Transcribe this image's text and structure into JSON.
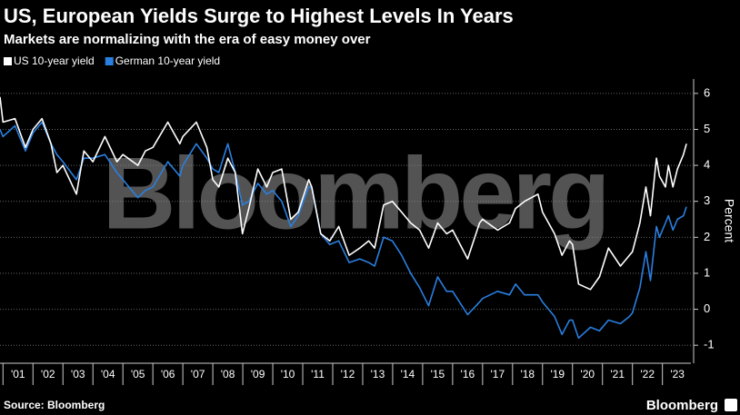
{
  "chart_data": {
    "type": "line",
    "title": "US, European Yields Surge to Highest Levels In Years",
    "subtitle": "Markets are normalizing with the era of easy money over",
    "y_label": "Percent",
    "source": "Source: Bloomberg",
    "logo": "Bloomberg",
    "watermark": "Bloomberg",
    "legend": "top-left",
    "grid": true,
    "x": [
      2000.9,
      2001.0,
      2001.4,
      2001.75,
      2002.0,
      2002.3,
      2002.6,
      2002.8,
      2003.0,
      2003.45,
      2003.7,
      2004.0,
      2004.4,
      2004.8,
      2005.0,
      2005.5,
      2005.75,
      2006.0,
      2006.5,
      2006.9,
      2007.0,
      2007.45,
      2007.8,
      2008.0,
      2008.2,
      2008.5,
      2008.75,
      2008.99,
      2009.2,
      2009.5,
      2009.8,
      2010.0,
      2010.3,
      2010.6,
      2010.85,
      2011.2,
      2011.3,
      2011.6,
      2011.9,
      2012.2,
      2012.55,
      2012.9,
      2013.2,
      2013.4,
      2013.7,
      2013.99,
      2014.3,
      2014.6,
      2014.9,
      2015.2,
      2015.5,
      2015.8,
      2016.0,
      2016.5,
      2016.9,
      2017.0,
      2017.5,
      2017.9,
      2018.1,
      2018.4,
      2018.85,
      2019.0,
      2019.4,
      2019.65,
      2019.9,
      2020.0,
      2020.2,
      2020.6,
      2020.9,
      2021.2,
      2021.6,
      2021.9,
      2022.0,
      2022.25,
      2022.45,
      2022.6,
      2022.8,
      2022.9,
      2023.1,
      2023.2,
      2023.35,
      2023.5,
      2023.7,
      2023.8
    ],
    "series": [
      {
        "name": "US 10-year yield",
        "color": "#ffffff",
        "values": [
          5.9,
          5.2,
          5.3,
          4.5,
          5.0,
          5.3,
          4.6,
          3.8,
          4.0,
          3.2,
          4.4,
          4.1,
          4.8,
          4.1,
          4.3,
          4.0,
          4.4,
          4.5,
          5.2,
          4.6,
          4.8,
          5.2,
          4.5,
          3.6,
          3.4,
          4.2,
          3.8,
          2.1,
          2.8,
          3.9,
          3.4,
          3.8,
          3.9,
          2.5,
          2.7,
          3.6,
          3.4,
          2.1,
          1.9,
          2.3,
          1.5,
          1.7,
          1.9,
          1.7,
          2.9,
          3.0,
          2.7,
          2.4,
          2.2,
          1.7,
          2.4,
          2.1,
          2.2,
          1.4,
          2.4,
          2.5,
          2.2,
          2.4,
          2.8,
          3.0,
          3.2,
          2.7,
          2.1,
          1.5,
          1.9,
          1.8,
          0.7,
          0.55,
          0.9,
          1.7,
          1.2,
          1.5,
          1.6,
          2.4,
          3.4,
          2.6,
          4.2,
          3.7,
          3.4,
          4.0,
          3.4,
          3.9,
          4.3,
          4.6
        ]
      },
      {
        "name": "German 10-year yield",
        "color": "#2a7fe0",
        "values": [
          5.0,
          4.8,
          5.1,
          4.4,
          4.9,
          5.2,
          4.6,
          4.3,
          4.1,
          3.6,
          4.2,
          4.2,
          4.3,
          3.8,
          3.6,
          3.1,
          3.3,
          3.4,
          4.1,
          3.7,
          4.0,
          4.6,
          4.2,
          3.9,
          3.8,
          4.6,
          3.8,
          2.9,
          3.0,
          3.5,
          3.2,
          3.3,
          3.0,
          2.3,
          2.6,
          3.4,
          3.4,
          2.1,
          1.8,
          1.9,
          1.3,
          1.4,
          1.3,
          1.2,
          2.0,
          1.9,
          1.5,
          1.0,
          0.6,
          0.1,
          0.9,
          0.5,
          0.5,
          -0.15,
          0.2,
          0.3,
          0.5,
          0.4,
          0.7,
          0.4,
          0.4,
          0.2,
          -0.2,
          -0.7,
          -0.3,
          -0.3,
          -0.8,
          -0.5,
          -0.6,
          -0.3,
          -0.4,
          -0.2,
          -0.1,
          0.6,
          1.6,
          0.8,
          2.3,
          2.0,
          2.4,
          2.6,
          2.2,
          2.5,
          2.6,
          2.85
        ]
      }
    ],
    "xlim": [
      2000.9,
      2023.95
    ],
    "xticks": [
      {
        "value": 2001,
        "label": "'01"
      },
      {
        "value": 2002,
        "label": "'02"
      },
      {
        "value": 2003,
        "label": "'03"
      },
      {
        "value": 2004,
        "label": "'04"
      },
      {
        "value": 2005,
        "label": "'05"
      },
      {
        "value": 2006,
        "label": "'06"
      },
      {
        "value": 2007,
        "label": "'07"
      },
      {
        "value": 2008,
        "label": "'08"
      },
      {
        "value": 2009,
        "label": "'09"
      },
      {
        "value": 2010,
        "label": "'10"
      },
      {
        "value": 2011,
        "label": "'11"
      },
      {
        "value": 2012,
        "label": "'12"
      },
      {
        "value": 2013,
        "label": "'13"
      },
      {
        "value": 2014,
        "label": "'14"
      },
      {
        "value": 2015,
        "label": "'15"
      },
      {
        "value": 2016,
        "label": "'16"
      },
      {
        "value": 2017,
        "label": "'17"
      },
      {
        "value": 2018,
        "label": "'18"
      },
      {
        "value": 2019,
        "label": "'19"
      },
      {
        "value": 2020,
        "label": "'20"
      },
      {
        "value": 2021,
        "label": "'21"
      },
      {
        "value": 2022,
        "label": "'22"
      },
      {
        "value": 2023,
        "label": "'23"
      }
    ],
    "ylim": [
      -1.5,
      6.4
    ],
    "yticks": [
      -1,
      0,
      1,
      2,
      3,
      4,
      5,
      6
    ]
  }
}
